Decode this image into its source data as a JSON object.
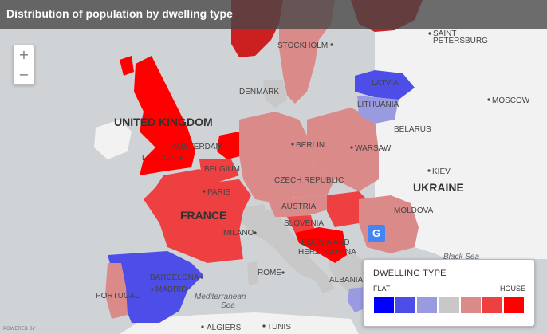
{
  "title": "Distribution of population by dwelling type",
  "zoom": {
    "in_label": "+",
    "out_label": "−"
  },
  "legend": {
    "title": "DWELLING TYPE",
    "min_label": "FLAT",
    "max_label": "HOUSE",
    "colors": [
      "#0000ff",
      "#4d4de8",
      "#9a9ae0",
      "#c8c8c8",
      "#db8a8a",
      "#ee4040",
      "#ff0000"
    ]
  },
  "labels": {
    "stockholm": "STOCKHOLM",
    "st_petersburg_1": "SAINT",
    "st_petersburg_2": "PETERSBURG",
    "latvia": "LATVIA",
    "lithuania": "LITHUANIA",
    "moscow": "MOSCOW",
    "denmark": "DENMARK",
    "united_kingdom": "UNITED KINGDOM",
    "belarus": "BELARUS",
    "amsterdam": "AMSTERDAM",
    "berlin": "BERLIN",
    "warsaw": "WARSAW",
    "london": "LONDON",
    "belgium": "BELGIUM",
    "kiev": "KIEV",
    "czech_republic": "CZECH REPUBLIC",
    "paris": "PARIS",
    "ukraine": "UKRAINE",
    "austria": "AUSTRIA",
    "moldova": "MOLDOVA",
    "france": "FRANCE",
    "slovenia": "SLOVENIA",
    "milano": "MILANO",
    "bosnia_1": "BOSNIA AND",
    "bosnia_2": "HERZEGOVINA",
    "black_sea": "Black Sea",
    "rome": "ROME",
    "barcelona": "BARCELONA",
    "albania": "ALBANIA",
    "madrid": "MADRID",
    "portugal": "PORTUGAL",
    "mediterranean_1": "Mediterranean",
    "mediterranean_2": "Sea",
    "algiers": "ALGIERS",
    "tunis": "TUNIS"
  },
  "powered_by": "POWERED BY",
  "colors": {
    "sea": "#cfd3d6",
    "land": "#f2f2f2",
    "no_data": "#c8c8c8"
  }
}
